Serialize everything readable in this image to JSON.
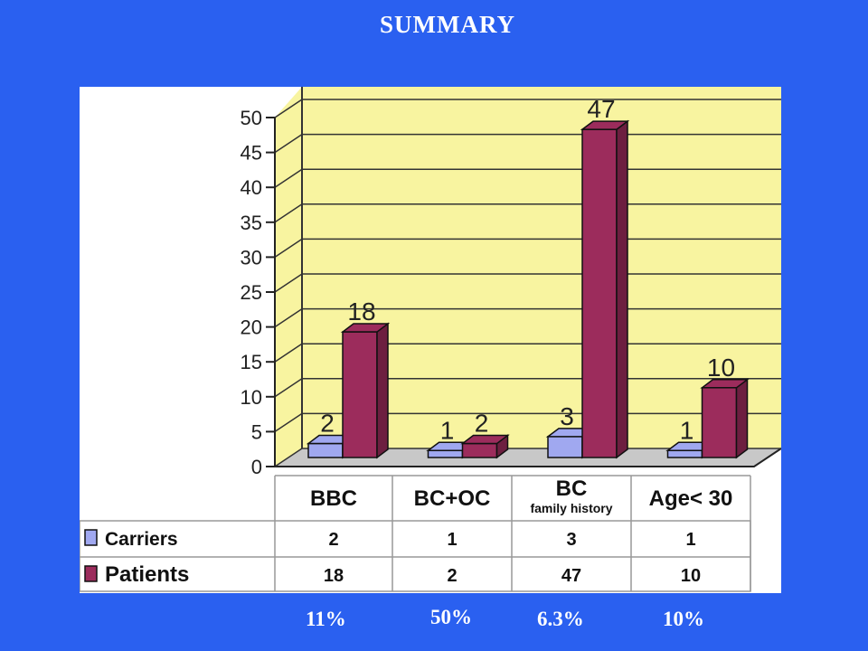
{
  "slide": {
    "title": "SUMMARY",
    "percentages": [
      "11%",
      "50%",
      "6.3%",
      "10%"
    ]
  },
  "colors": {
    "background": "#2a60f0",
    "plot_wall": "#f8f4a0",
    "carriers": "#a0a8f0",
    "patients": "#9c2c5c"
  },
  "chart_data": {
    "type": "bar",
    "title": "",
    "xlabel": "",
    "ylabel": "",
    "ylim": [
      0,
      50
    ],
    "yticks": [
      0,
      5,
      10,
      15,
      20,
      25,
      30,
      35,
      40,
      45,
      50
    ],
    "grid": true,
    "categories": [
      "BBC",
      "BC+OC",
      "BC",
      "Age< 30"
    ],
    "category_subtitles": [
      "",
      "",
      "family history",
      ""
    ],
    "series": [
      {
        "name": "Carriers",
        "values": [
          2,
          1,
          3,
          1
        ]
      },
      {
        "name": "Patients",
        "values": [
          18,
          2,
          47,
          10
        ]
      }
    ]
  }
}
